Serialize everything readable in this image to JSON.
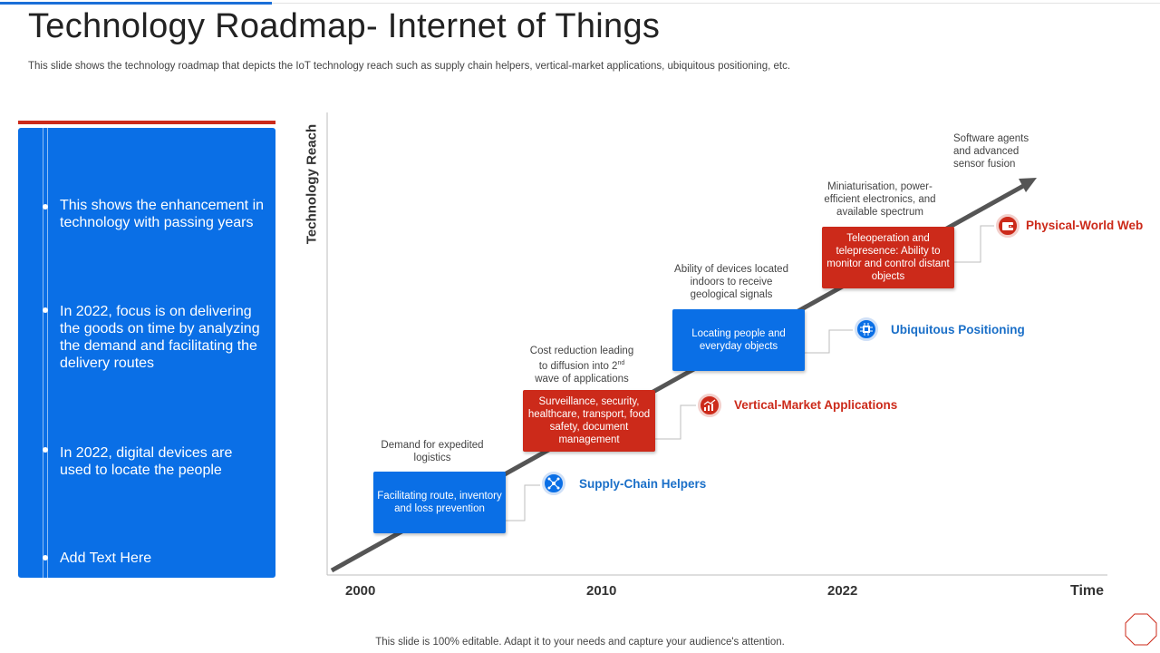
{
  "header": {
    "title": "Technology Roadmap- Internet of Things",
    "subtitle": "This slide shows the technology roadmap that depicts the IoT technology reach such as supply chain helpers, vertical-market applications, ubiquitous positioning, etc."
  },
  "sidebar": {
    "bullets": [
      "This shows the enhancement in technology with passing years",
      "In 2022, focus is on delivering the goods on time by analyzing the demand and facilitating the delivery routes",
      "In 2022, digital devices are used to locate the people",
      "Add Text Here"
    ]
  },
  "diagram": {
    "y_axis_label": "Technology Reach",
    "x_axis_label": "Time",
    "x_ticks": [
      "2000",
      "2010",
      "2022"
    ],
    "stages": [
      {
        "note": "Demand for expedited logistics",
        "box": "Facilitating route, inventory and loss prevention",
        "category": "Supply-Chain Helpers",
        "color": "#0a6fe6",
        "icon": "network-icon"
      },
      {
        "note_line1": "Cost reduction leading",
        "note_line2_prefix": "to diffusion into 2",
        "note_sup": "nd",
        "note_line3": "wave of applications",
        "box": "Surveillance, security, healthcare, transport, food safety, document management",
        "category": "Vertical-Market Applications",
        "color": "#cc2a1a",
        "icon": "growth-chart-icon"
      },
      {
        "note": "Ability of devices located indoors to receive geological signals",
        "box": "Locating people and everyday objects",
        "category": "Ubiquitous Positioning",
        "color": "#0a6fe6",
        "icon": "chip-icon"
      },
      {
        "note": "Miniaturisation, power-efficient electronics, and available spectrum",
        "box": "Teleoperation and telepresence: Ability to monitor and control distant objects",
        "category": "Physical-World Web",
        "color": "#cc2a1a",
        "icon": "wallet-icon"
      }
    ],
    "final_note": "Software agents and advanced sensor fusion"
  },
  "footer": {
    "text": "This slide is 100% editable. Adapt it to your needs and capture your audience's attention."
  }
}
